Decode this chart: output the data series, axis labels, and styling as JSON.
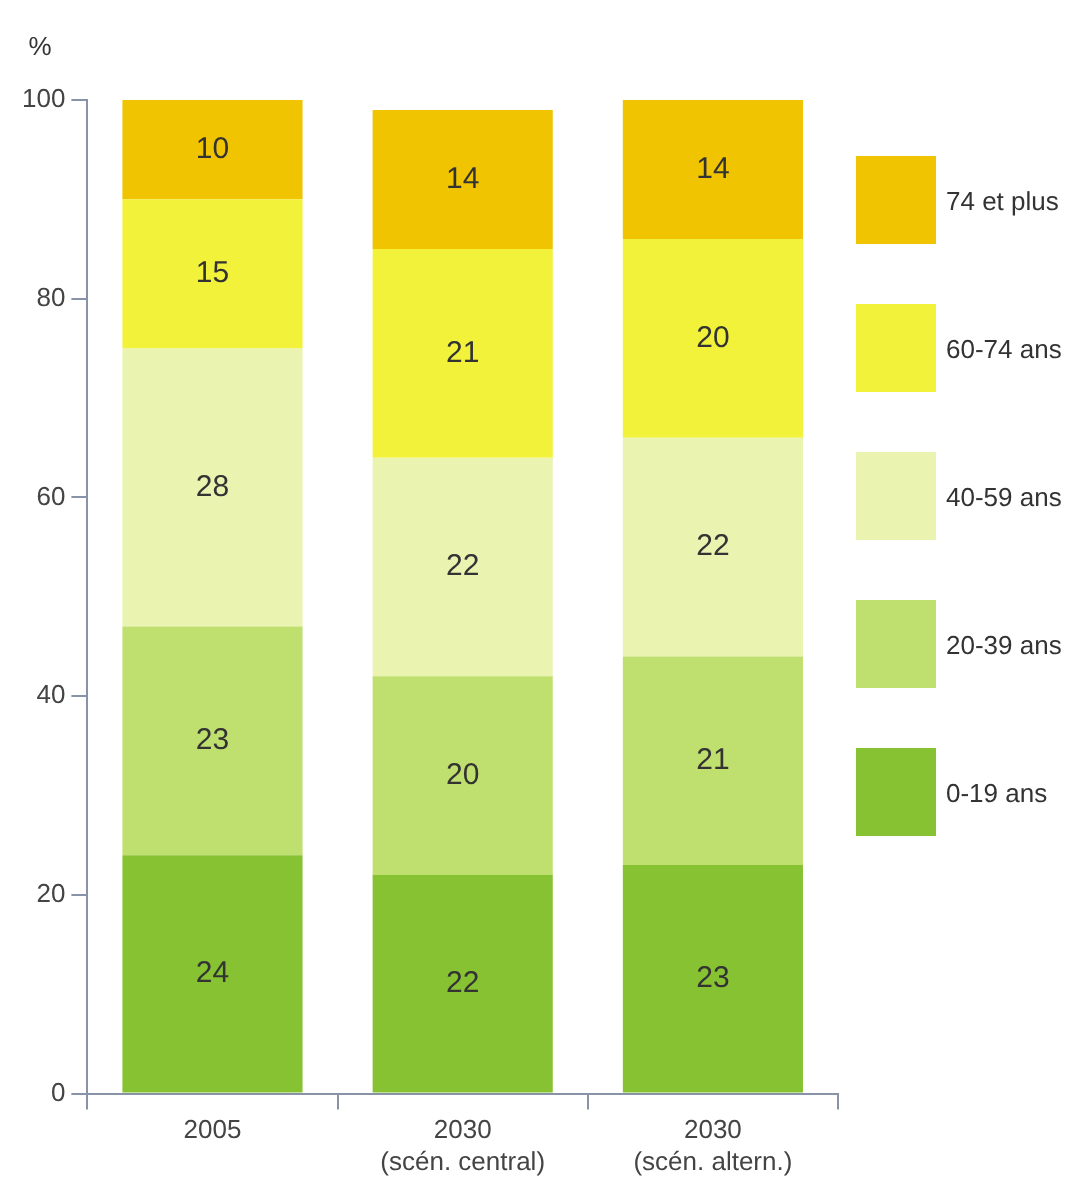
{
  "chart_data": {
    "type": "bar",
    "stacked": true,
    "ylabel": "%",
    "categories": [
      "2005",
      "2030\n(scén. central)",
      "2030\n(scén. altern.)"
    ],
    "series": [
      {
        "name": "0-19 ans",
        "color": "#86c232",
        "values": [
          24,
          22,
          23
        ]
      },
      {
        "name": "20-39 ans",
        "color": "#bfe06e",
        "values": [
          23,
          20,
          21
        ]
      },
      {
        "name": "40-59 ans",
        "color": "#eaf3b0",
        "values": [
          28,
          22,
          22
        ]
      },
      {
        "name": "60-74 ans",
        "color": "#f2f23a",
        "values": [
          15,
          21,
          20
        ]
      },
      {
        "name": "74 et plus",
        "color": "#f0c400",
        "values": [
          10,
          14,
          14
        ]
      }
    ],
    "ylim": [
      0,
      100
    ],
    "yticks": [
      0,
      20,
      40,
      60,
      80,
      100
    ],
    "grid": false,
    "legend": "right",
    "data_labels": true
  }
}
